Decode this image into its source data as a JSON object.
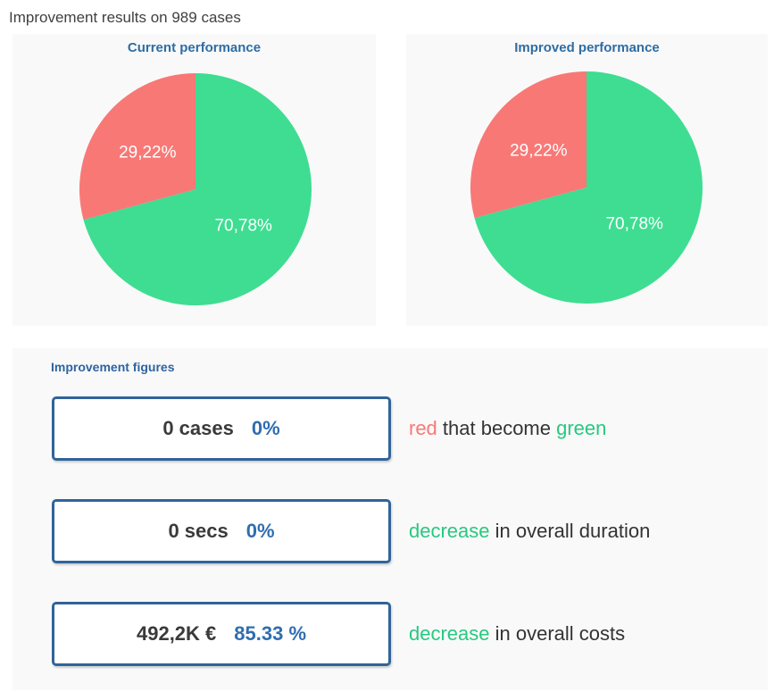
{
  "page": {
    "title": "Improvement results on 989 cases"
  },
  "colors": {
    "pie_green": "#3EDD92",
    "pie_red": "#F87876",
    "text_green": "#26C97F",
    "text_red": "#F87876",
    "text_dark": "#333333",
    "accent_blue": "#2E6DA4",
    "box_border_blue": "#30649B",
    "percent_blue": "#2F6DB0",
    "panel_bg": "#F9F9F9"
  },
  "chart_data": [
    {
      "type": "pie",
      "title": "Current performance",
      "start_angle_deg": -90,
      "direction": "clockwise",
      "legend": "none",
      "label_color": "#FFFFFF",
      "slices": [
        {
          "name": "green",
          "label": "70,78%",
          "value": 70.78,
          "color": "#3EDD92"
        },
        {
          "name": "red",
          "label": "29,22%",
          "value": 29.22,
          "color": "#F87876"
        }
      ]
    },
    {
      "type": "pie",
      "title": "Improved performance",
      "start_angle_deg": -90,
      "direction": "clockwise",
      "legend": "none",
      "label_color": "#FFFFFF",
      "slices": [
        {
          "name": "green",
          "label": "70,78%",
          "value": 70.78,
          "color": "#3EDD92"
        },
        {
          "name": "red",
          "label": "29,22%",
          "value": 29.22,
          "color": "#F87876"
        }
      ]
    }
  ],
  "figures": {
    "section_title": "Improvement figures",
    "rows": [
      {
        "value": "0 cases",
        "percent": "0%",
        "desc": [
          {
            "text": "red",
            "color": "#F87876"
          },
          {
            "text": " that become ",
            "color": "#333333"
          },
          {
            "text": "green",
            "color": "#26C97F"
          }
        ]
      },
      {
        "value": "0 secs",
        "percent": "0%",
        "desc": [
          {
            "text": "decrease",
            "color": "#26C97F"
          },
          {
            "text": " in overall duration",
            "color": "#333333"
          }
        ]
      },
      {
        "value": "492,2K €",
        "percent": "85.33 %",
        "desc": [
          {
            "text": "decrease",
            "color": "#26C97F"
          },
          {
            "text": " in overall costs",
            "color": "#333333"
          }
        ]
      }
    ]
  }
}
